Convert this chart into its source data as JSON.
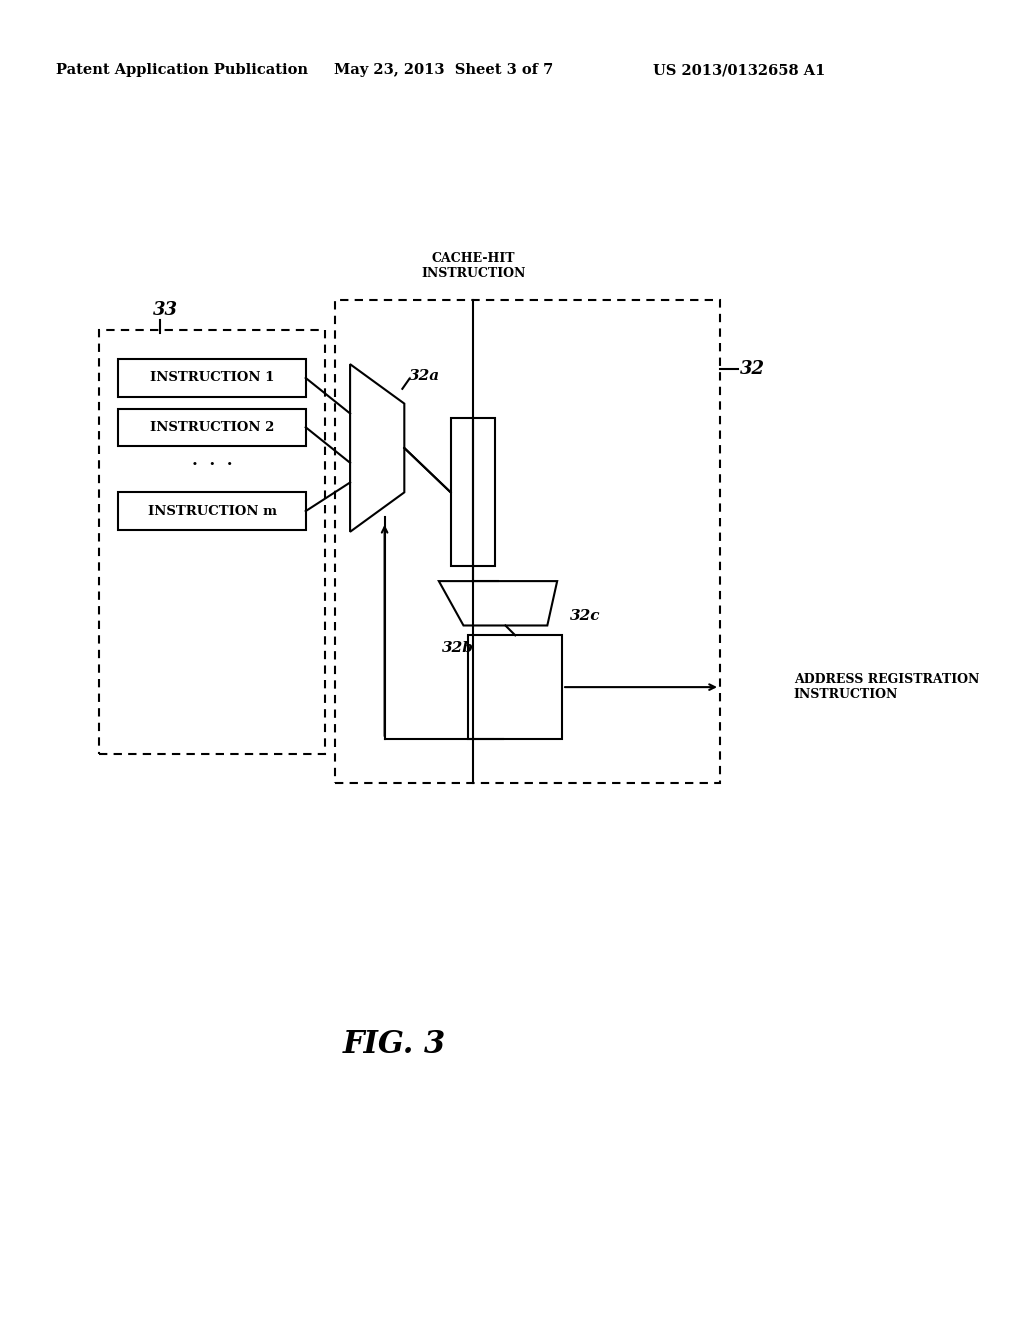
{
  "header_left": "Patent Application Publication",
  "header_mid": "May 23, 2013  Sheet 3 of 7",
  "header_right": "US 2013/0132658 A1",
  "fig_label": "FIG. 3",
  "instructions": [
    "INSTRUCTION 1",
    "INSTRUCTION 2",
    "INSTRUCTION m"
  ],
  "label_33": "33",
  "label_32": "32",
  "label_32a": "32a",
  "label_32b": "32b",
  "label_32c": "32c",
  "cache_hit_label": "CACHE-HIT\nINSTRUCTION",
  "addr_reg_label": "ADDRESS REGISTRATION\nINSTRUCTION",
  "bg_color": "#ffffff",
  "line_color": "#000000"
}
